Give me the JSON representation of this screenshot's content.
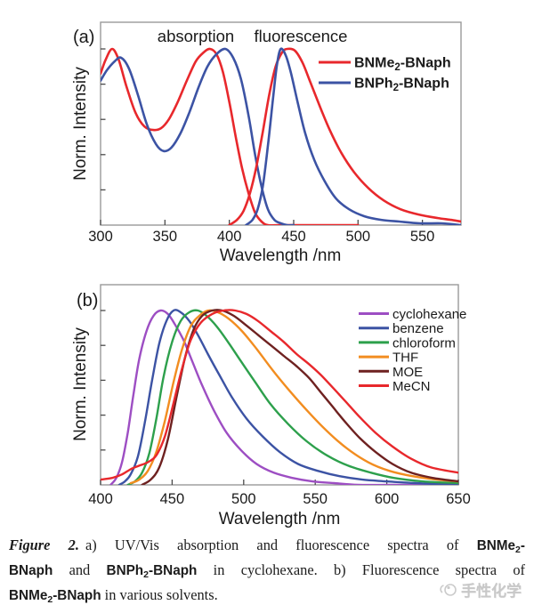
{
  "figure": {
    "caption_lines": [
      {
        "align": "justify",
        "segments": [
          {
            "text": "Figure 2.",
            "style": "figure-label"
          },
          {
            "text": "a) UV/Vis absorption and fluorescence spectra of ",
            "style": "plain"
          },
          {
            "text": "BNMe",
            "style": "bold"
          },
          {
            "text": "2",
            "style": "bold-sub"
          },
          {
            "text": "-",
            "style": "bold"
          }
        ]
      },
      {
        "align": "justify",
        "segments": [
          {
            "text": "BNaph",
            "style": "bold"
          },
          {
            "text": " and ",
            "style": "plain"
          },
          {
            "text": "BNPh",
            "style": "bold"
          },
          {
            "text": "2",
            "style": "bold-sub"
          },
          {
            "text": "-BNaph",
            "style": "bold"
          },
          {
            "text": " in cyclohexane. b) Fluorescence spectra of",
            "style": "plain"
          }
        ]
      },
      {
        "align": "left",
        "segments": [
          {
            "text": "BNMe",
            "style": "bold"
          },
          {
            "text": "2",
            "style": "bold-sub"
          },
          {
            "text": "-BNaph",
            "style": "bold"
          },
          {
            "text": " in various solvents.",
            "style": "plain"
          }
        ]
      }
    ],
    "watermark": {
      "text": "手性化学"
    }
  },
  "chart_data": [
    {
      "type": "line",
      "panel_label": "(a)",
      "title": "UV/Vis absorption and fluorescence spectra of BNMe2-BNaph and BNPh2-BNaph in cyclohexane",
      "annotations": [
        {
          "text": "absorption"
        },
        {
          "text": "fluorescence"
        }
      ],
      "xlabel": "Wavelength /nm",
      "ylabel": "Norm. Intensity",
      "xlim": [
        300,
        580
      ],
      "ylim": [
        0,
        1.15
      ],
      "x_ticks": [
        300,
        350,
        400,
        450,
        500,
        550
      ],
      "grid": false,
      "legend_position": "upper right",
      "legend": [
        {
          "parts": [
            {
              "t": "BNMe"
            },
            {
              "t": "2",
              "sub": true
            },
            {
              "t": "-BNaph"
            }
          ],
          "color": "#e8282c"
        },
        {
          "parts": [
            {
              "t": "BNPh"
            },
            {
              "t": "2",
              "sub": true
            },
            {
              "t": "-BNaph"
            }
          ],
          "color": "#3c53a4"
        }
      ],
      "series": [
        {
          "name": "BNMe2-BNaph absorption",
          "color": "#e8282c",
          "x": [
            300,
            304,
            309,
            314,
            320,
            327,
            334,
            341,
            347,
            353,
            360,
            367,
            374,
            380,
            385,
            390,
            395,
            400,
            405,
            410,
            415,
            420,
            425,
            430,
            440,
            460,
            480,
            500
          ],
          "y": [
            0.86,
            0.94,
            1.0,
            0.94,
            0.79,
            0.64,
            0.56,
            0.54,
            0.55,
            0.6,
            0.7,
            0.82,
            0.93,
            0.98,
            1.0,
            0.97,
            0.87,
            0.7,
            0.5,
            0.32,
            0.18,
            0.07,
            0.02,
            0.0,
            0.0,
            0.0,
            0.0,
            0.0
          ]
        },
        {
          "name": "BNPh2-BNaph absorption",
          "color": "#3c53a4",
          "x": [
            300,
            305,
            311,
            316,
            322,
            329,
            336,
            343,
            349,
            355,
            362,
            369,
            376,
            383,
            390,
            397,
            403,
            409,
            415,
            420,
            425,
            430,
            435,
            440,
            445,
            450
          ],
          "y": [
            0.82,
            0.88,
            0.93,
            0.95,
            0.89,
            0.74,
            0.57,
            0.46,
            0.42,
            0.44,
            0.52,
            0.64,
            0.78,
            0.9,
            0.97,
            1.0,
            0.95,
            0.83,
            0.62,
            0.4,
            0.22,
            0.09,
            0.03,
            0.01,
            0.0,
            0.0
          ]
        },
        {
          "name": "BNMe2-BNaph fluorescence",
          "color": "#e8282c",
          "x": [
            400,
            406,
            411,
            416,
            421,
            426,
            431,
            436,
            441,
            445,
            451,
            457,
            463,
            470,
            478,
            487,
            497,
            508,
            520,
            533,
            547,
            562,
            572,
            580
          ],
          "y": [
            0.0,
            0.03,
            0.08,
            0.18,
            0.33,
            0.53,
            0.74,
            0.9,
            0.98,
            1.0,
            0.99,
            0.92,
            0.81,
            0.68,
            0.54,
            0.41,
            0.3,
            0.21,
            0.14,
            0.09,
            0.06,
            0.04,
            0.03,
            0.02
          ]
        },
        {
          "name": "BNPh2-BNaph fluorescence",
          "color": "#3c53a4",
          "x": [
            413,
            418,
            422,
            426,
            430,
            434,
            437,
            440,
            444,
            448,
            453,
            459,
            466,
            474,
            483,
            493,
            505,
            518,
            532,
            548,
            565,
            580
          ],
          "y": [
            0.0,
            0.03,
            0.09,
            0.22,
            0.45,
            0.72,
            0.91,
            1.0,
            0.96,
            0.86,
            0.7,
            0.52,
            0.37,
            0.25,
            0.15,
            0.09,
            0.05,
            0.03,
            0.02,
            0.01,
            0.01,
            0.0
          ]
        }
      ]
    },
    {
      "type": "line",
      "panel_label": "(b)",
      "title": "Fluorescence spectra of BNMe2-BNaph in various solvents",
      "annotations": [],
      "xlabel": "Wavelength /nm",
      "ylabel": "Norm. Intensity",
      "xlim": [
        400,
        650
      ],
      "ylim": [
        0,
        1.14
      ],
      "x_ticks": [
        400,
        450,
        500,
        550,
        600,
        650
      ],
      "grid": false,
      "legend_position": "upper right",
      "legend": [
        {
          "parts": [
            {
              "t": "cyclohexane"
            }
          ],
          "color": "#9d4ec3"
        },
        {
          "parts": [
            {
              "t": "benzene"
            }
          ],
          "color": "#3c53a4"
        },
        {
          "parts": [
            {
              "t": "chloroform"
            }
          ],
          "color": "#2da04c"
        },
        {
          "parts": [
            {
              "t": "THF"
            }
          ],
          "color": "#f28d20"
        },
        {
          "parts": [
            {
              "t": "MOE"
            }
          ],
          "color": "#6e2120"
        },
        {
          "parts": [
            {
              "t": "MeCN"
            }
          ],
          "color": "#e8282c"
        }
      ],
      "series": [
        {
          "name": "cyclohexane",
          "color": "#9d4ec3",
          "x": [
            407,
            411,
            415,
            419,
            423,
            427,
            432,
            437,
            442,
            447,
            452,
            458,
            464,
            471,
            479,
            488,
            498,
            509,
            521,
            534,
            548,
            563,
            580,
            605,
            650
          ],
          "y": [
            0.0,
            0.04,
            0.13,
            0.3,
            0.52,
            0.72,
            0.88,
            0.97,
            1.0,
            0.98,
            0.92,
            0.83,
            0.71,
            0.57,
            0.43,
            0.3,
            0.2,
            0.12,
            0.07,
            0.04,
            0.02,
            0.01,
            0.0,
            0.0,
            0.0
          ]
        },
        {
          "name": "benzene",
          "color": "#3c53a4",
          "x": [
            413,
            417,
            421,
            426,
            431,
            436,
            441,
            446,
            451,
            456,
            462,
            468,
            475,
            483,
            492,
            502,
            513,
            525,
            538,
            552,
            567,
            583,
            600,
            620,
            650
          ],
          "y": [
            0.0,
            0.02,
            0.06,
            0.16,
            0.36,
            0.6,
            0.81,
            0.94,
            1.0,
            0.99,
            0.94,
            0.86,
            0.75,
            0.63,
            0.5,
            0.38,
            0.28,
            0.19,
            0.12,
            0.08,
            0.05,
            0.03,
            0.02,
            0.01,
            0.0
          ]
        },
        {
          "name": "chloroform",
          "color": "#2da04c",
          "x": [
            419,
            424,
            429,
            434,
            439,
            444,
            450,
            456,
            462,
            468,
            474,
            481,
            489,
            498,
            508,
            519,
            531,
            544,
            558,
            573,
            589,
            605,
            625,
            650
          ],
          "y": [
            0.0,
            0.02,
            0.07,
            0.18,
            0.38,
            0.62,
            0.82,
            0.94,
            0.99,
            1.0,
            0.97,
            0.91,
            0.82,
            0.71,
            0.59,
            0.46,
            0.35,
            0.25,
            0.17,
            0.11,
            0.07,
            0.04,
            0.02,
            0.01
          ]
        },
        {
          "name": "THF",
          "color": "#f28d20",
          "x": [
            421,
            427,
            433,
            439,
            445,
            451,
            457,
            463,
            469,
            475,
            482,
            490,
            499,
            509,
            520,
            532,
            545,
            558,
            572,
            587,
            602,
            618,
            635,
            650
          ],
          "y": [
            0.01,
            0.03,
            0.08,
            0.19,
            0.37,
            0.59,
            0.78,
            0.91,
            0.97,
            1.0,
            0.99,
            0.95,
            0.88,
            0.78,
            0.66,
            0.54,
            0.42,
            0.31,
            0.21,
            0.13,
            0.08,
            0.05,
            0.03,
            0.02
          ]
        },
        {
          "name": "MOE",
          "color": "#6e2120",
          "x": [
            429,
            435,
            441,
            447,
            453,
            459,
            465,
            471,
            478,
            485,
            493,
            501,
            510,
            519,
            528,
            537,
            546,
            554,
            562,
            571,
            581,
            592,
            604,
            617,
            632,
            650
          ],
          "y": [
            0.0,
            0.03,
            0.1,
            0.26,
            0.5,
            0.73,
            0.89,
            0.97,
            1.0,
            1.0,
            0.97,
            0.92,
            0.86,
            0.8,
            0.74,
            0.68,
            0.61,
            0.53,
            0.45,
            0.36,
            0.27,
            0.19,
            0.12,
            0.07,
            0.04,
            0.02
          ]
        },
        {
          "name": "MeCN",
          "color": "#e8282c",
          "x": [
            400,
            408,
            415,
            421,
            427,
            433,
            439,
            445,
            451,
            457,
            463,
            470,
            478,
            486,
            494,
            502,
            510,
            519,
            528,
            537,
            546,
            554,
            562,
            571,
            581,
            592,
            604,
            617,
            631,
            650
          ],
          "y": [
            0.03,
            0.04,
            0.06,
            0.09,
            0.11,
            0.13,
            0.17,
            0.28,
            0.47,
            0.67,
            0.83,
            0.93,
            0.98,
            1.0,
            1.0,
            0.98,
            0.94,
            0.88,
            0.82,
            0.75,
            0.69,
            0.63,
            0.56,
            0.48,
            0.39,
            0.3,
            0.22,
            0.15,
            0.1,
            0.07
          ]
        }
      ]
    }
  ]
}
